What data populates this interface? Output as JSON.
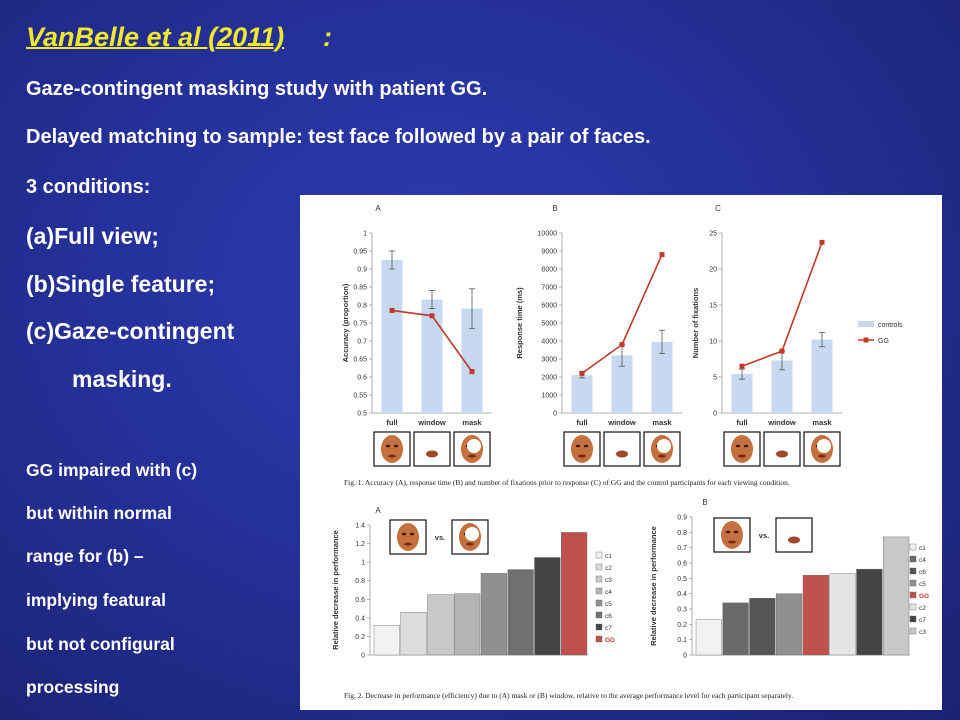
{
  "slide": {
    "title": "VanBelle et al (2011)",
    "title_colon": ":",
    "lines": [
      "Gaze-contingent masking study with patient GG.",
      "Delayed matching to sample: test face followed by a pair of faces.",
      "3 conditions:",
      "(a)Full view;",
      "(b)Single feature;",
      "(c)Gaze-contingent",
      "masking."
    ],
    "notes": [
      "GG impaired with (c)",
      "but within normal",
      "range for (b) –",
      "implying featural",
      "but not configural",
      "processing"
    ]
  },
  "colors": {
    "background": "#25319a",
    "title": "#f0e92a",
    "bar": "#c6d9f0",
    "gg": "#c0392b"
  },
  "figure": {
    "fig1_caption": "Fig. 1.  Accuracy (A), response time (B) and number of fixations prior to response (C) of GG and the control participants for each viewing condition.",
    "fig2_caption": "Fig. 2.  Decrease in performance (efficiency) due to (A) mask or (B) window, relative to the average performance level for each participant separately.",
    "vs_label": "vs."
  },
  "chart_data": [
    {
      "type": "bar",
      "panel": "A",
      "ylabel": "Accuracy (proportion)",
      "categories": [
        "full",
        "window",
        "mask"
      ],
      "ylim": [
        0.5,
        1
      ],
      "yticks": [
        "0.5",
        "0.55",
        "0.6",
        "0.65",
        "0.7",
        "0.75",
        "0.8",
        "0.85",
        "0.9",
        "0.95",
        "1"
      ],
      "series": [
        {
          "name": "controls",
          "kind": "bar",
          "values": [
            0.925,
            0.815,
            0.79
          ],
          "err": [
            0.025,
            0.025,
            0.055
          ]
        },
        {
          "name": "GG",
          "kind": "line",
          "values": [
            0.785,
            0.77,
            0.615
          ]
        }
      ]
    },
    {
      "type": "bar",
      "panel": "B",
      "ylabel": "Response time (ms)",
      "categories": [
        "full",
        "window",
        "mask"
      ],
      "ylim": [
        0,
        10000
      ],
      "yticks": [
        "0",
        "1000",
        "2000",
        "3000",
        "4000",
        "5000",
        "6000",
        "7000",
        "8000",
        "9000",
        "10000"
      ],
      "series": [
        {
          "name": "controls",
          "kind": "bar",
          "values": [
            2100,
            3200,
            3950
          ],
          "err": [
            150,
            600,
            650
          ]
        },
        {
          "name": "GG",
          "kind": "line",
          "values": [
            2200,
            3800,
            8800
          ]
        }
      ]
    },
    {
      "type": "bar",
      "panel": "C",
      "ylabel": "Number of fixations",
      "categories": [
        "full",
        "window",
        "mask"
      ],
      "ylim": [
        0,
        25
      ],
      "yticks": [
        "0",
        "5",
        "10",
        "15",
        "20",
        "25"
      ],
      "legend": [
        "controls",
        "GG"
      ],
      "series": [
        {
          "name": "controls",
          "kind": "bar",
          "values": [
            5.4,
            7.3,
            10.2
          ],
          "err": [
            0.7,
            1.3,
            1.0
          ]
        },
        {
          "name": "GG",
          "kind": "line",
          "values": [
            6.5,
            8.6,
            23.7
          ]
        }
      ]
    },
    {
      "type": "bar",
      "panel": "A",
      "ylabel": "Relative decrease in performance",
      "categories": [
        "c1",
        "c2",
        "c3",
        "c4",
        "c5",
        "c6",
        "c7",
        "GG"
      ],
      "ylim": [
        0,
        1.4
      ],
      "yticks": [
        "0",
        "0.2",
        "0.4",
        "0.6",
        "0.8",
        "1",
        "1.2",
        "1.4"
      ],
      "values": [
        0.32,
        0.46,
        0.65,
        0.66,
        0.88,
        0.92,
        1.05,
        1.32
      ],
      "colors": [
        "#f2f2f2",
        "#dcdcdc",
        "#c8c8c8",
        "#b4b4b4",
        "#909090",
        "#707070",
        "#454545",
        "#c0504d"
      ]
    },
    {
      "type": "bar",
      "panel": "B",
      "ylabel": "Relative decrease in performance",
      "categories": [
        "c1",
        "c4",
        "c6",
        "c5",
        "GG",
        "c2",
        "c7",
        "c3"
      ],
      "ylim": [
        0,
        0.9
      ],
      "yticks": [
        "0",
        "0.1",
        "0.2",
        "0.3",
        "0.4",
        "0.5",
        "0.6",
        "0.7",
        "0.8",
        "0.9"
      ],
      "values": [
        0.23,
        0.34,
        0.37,
        0.4,
        0.52,
        0.53,
        0.56,
        0.77
      ],
      "colors": [
        "#f2f2f2",
        "#6a6a6a",
        "#555555",
        "#909090",
        "#c0504d",
        "#e4e4e4",
        "#454545",
        "#c8c8c8"
      ]
    }
  ]
}
